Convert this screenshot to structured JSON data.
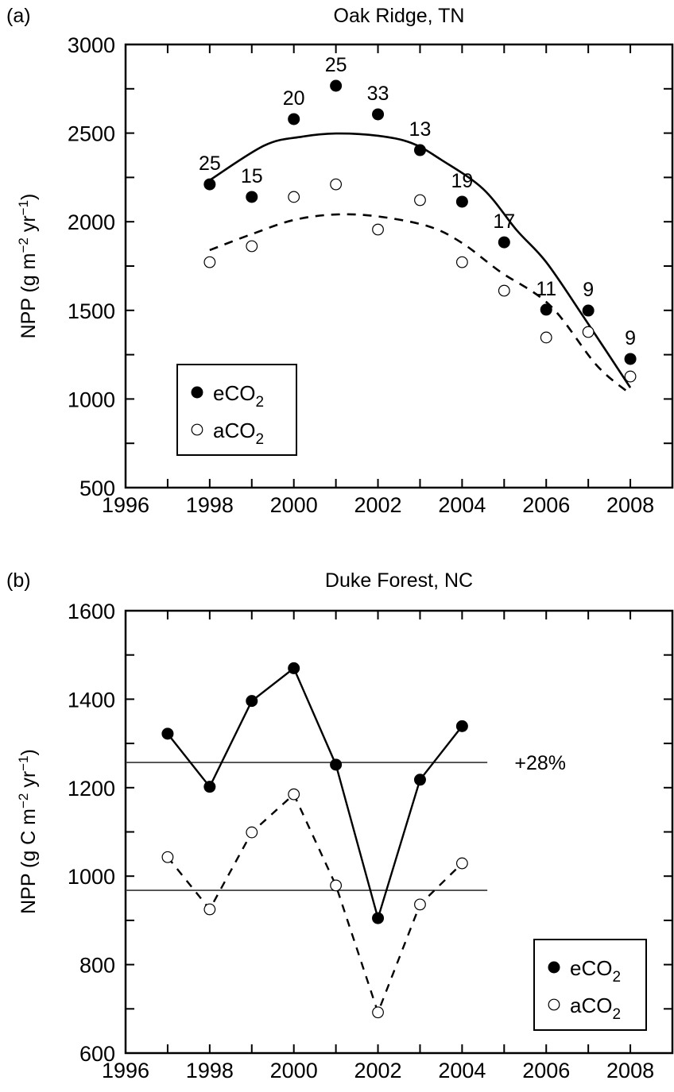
{
  "chart_data": [
    {
      "type": "scatter",
      "panel_label": "(a)",
      "title": "Oak Ridge, TN",
      "xlabel": "",
      "ylabel": "NPP (g m⁻² yr⁻¹)",
      "xlim": [
        1996,
        2009
      ],
      "ylim": [
        500,
        3000
      ],
      "xticks": [
        1996,
        1998,
        2000,
        2002,
        2004,
        2006,
        2008
      ],
      "xtick_labels": [
        "1996",
        "1998",
        "2000",
        "2002",
        "2004",
        "2006",
        "2008"
      ],
      "yticks": [
        500,
        1000,
        1500,
        2000,
        2500,
        3000
      ],
      "ytick_labels": [
        "500",
        "1000",
        "1500",
        "2000",
        "2500",
        "3000"
      ],
      "grid": false,
      "legend": {
        "placement": "lower-left",
        "entries": [
          {
            "marker": "filled-circle",
            "label": "eCO",
            "sub": "2"
          },
          {
            "marker": "open-circle",
            "label": "aCO",
            "sub": "2"
          }
        ]
      },
      "series": [
        {
          "name": "eCO2",
          "marker": "filled-circle",
          "x": [
            1998,
            1999,
            2000,
            2001,
            2002,
            2003,
            2004,
            2005,
            2006,
            2007,
            2008
          ],
          "y": [
            2211,
            2140,
            2579,
            2767,
            2606,
            2404,
            2113,
            1884,
            1504,
            1499,
            1226
          ],
          "point_labels": [
            "25",
            "15",
            "20",
            "25",
            "33",
            "13",
            "19",
            "17",
            "11",
            "9",
            "9"
          ]
        },
        {
          "name": "aCO2",
          "marker": "open-circle",
          "x": [
            1998,
            1999,
            2000,
            2001,
            2002,
            2003,
            2004,
            2005,
            2006,
            2007,
            2008
          ],
          "y": [
            1772,
            1862,
            2140,
            2211,
            1956,
            2122,
            1772,
            1611,
            1347,
            1378,
            1127
          ]
        }
      ],
      "fit_lines": [
        {
          "name": "eCO2 fit",
          "style": "solid",
          "x": [
            1998,
            1999.3,
            2000.2,
            2001,
            2002,
            2002.8,
            2003.5,
            2004.5,
            2005.3,
            2006,
            2006.9,
            2008
          ],
          "y": [
            2234,
            2430,
            2480,
            2498,
            2485,
            2444,
            2350,
            2185,
            1952,
            1772,
            1459,
            1064
          ]
        },
        {
          "name": "aCO2 fit",
          "style": "dashed",
          "x": [
            1998,
            1999,
            2000,
            2001,
            2002,
            2003.2,
            2004,
            2004.9,
            2006.1,
            2007.2,
            2008
          ],
          "y": [
            1840,
            1930,
            2010,
            2041,
            2030,
            1974,
            1880,
            1719,
            1526,
            1190,
            1029
          ]
        }
      ]
    },
    {
      "type": "line",
      "panel_label": "(b)",
      "title": "Duke Forest, NC",
      "xlabel": "",
      "ylabel": "NPP (g C m⁻² yr⁻¹)",
      "xlim": [
        1996,
        2009
      ],
      "ylim": [
        600,
        1600
      ],
      "xticks": [
        1996,
        1998,
        2000,
        2002,
        2004,
        2006,
        2008
      ],
      "xtick_labels": [
        "1996",
        "1998",
        "2000",
        "2002",
        "2004",
        "2006",
        "2008"
      ],
      "yticks": [
        600,
        800,
        1000,
        1200,
        1400,
        1600
      ],
      "ytick_labels": [
        "600",
        "800",
        "1000",
        "1200",
        "1400",
        "1600"
      ],
      "grid": false,
      "legend": {
        "placement": "lower-right",
        "entries": [
          {
            "marker": "filled-circle",
            "label": "eCO",
            "sub": "2"
          },
          {
            "marker": "open-circle",
            "label": "aCO",
            "sub": "2"
          }
        ]
      },
      "series": [
        {
          "name": "eCO2",
          "marker": "filled-circle",
          "line": "solid",
          "x": [
            1997,
            1998,
            1999,
            2000,
            2001,
            2002,
            2003,
            2004
          ],
          "y": [
            1322,
            1202,
            1396,
            1470,
            1252,
            905,
            1218,
            1339
          ]
        },
        {
          "name": "aCO2",
          "marker": "open-circle",
          "line": "dashed",
          "x": [
            1997,
            1998,
            1999,
            2000,
            2001,
            2002,
            2003,
            2004
          ],
          "y": [
            1043,
            925,
            1099,
            1185,
            979,
            692,
            936,
            1029
          ]
        }
      ],
      "mean_lines": [
        {
          "name": "eCO2 mean",
          "y": 1257,
          "x_range": [
            1996,
            2004.6
          ]
        },
        {
          "name": "aCO2 mean",
          "y": 968,
          "x_range": [
            1996,
            2004.6
          ]
        }
      ],
      "annotations": [
        {
          "text": "+28%",
          "x": 2005.7,
          "y": 1257
        }
      ]
    }
  ]
}
